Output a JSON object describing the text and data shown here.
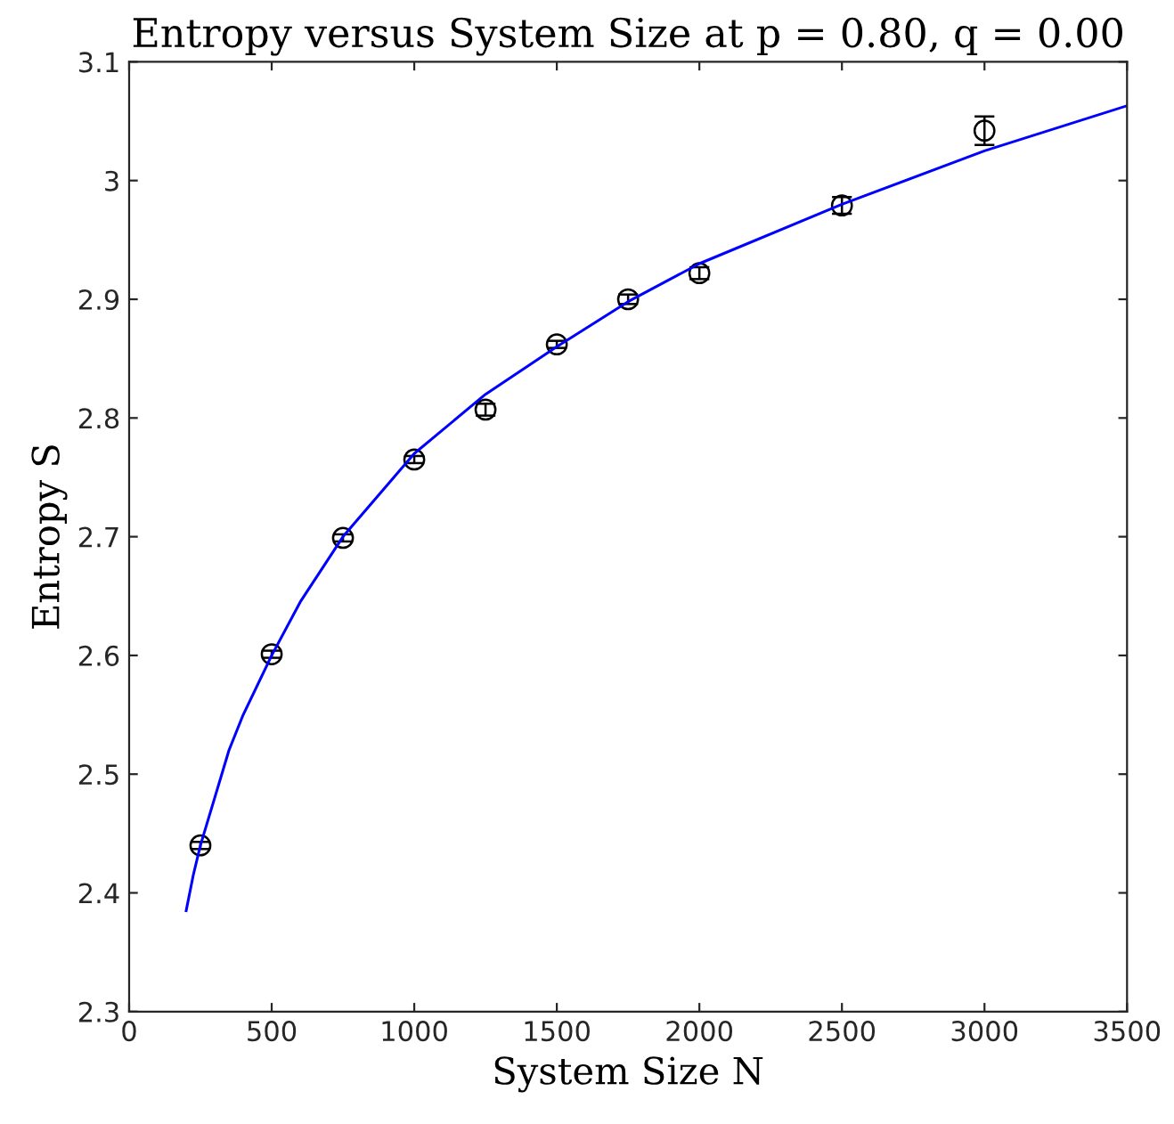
{
  "chart_data": {
    "type": "scatter",
    "title": "Entropy versus System Size at p = 0.80, q = 0.00",
    "xlabel": "System Size N",
    "ylabel": "Entropy S",
    "xlim": [
      0,
      3500
    ],
    "xticks": [
      0,
      500,
      1000,
      1500,
      2000,
      2500,
      3000,
      3500
    ],
    "ylim": [
      2.3,
      3.1
    ],
    "yticks": [
      2.3,
      2.4,
      2.5,
      2.6,
      2.7,
      2.8,
      2.9,
      3,
      3.1
    ],
    "grid": false,
    "legend": false,
    "series": [
      {
        "color": "#000000",
        "marker": "circle",
        "x": [
          250,
          500,
          750,
          1000,
          1250,
          1500,
          1750,
          2000,
          2500,
          3000
        ],
        "values": [
          2.44,
          2.601,
          2.699,
          2.765,
          2.807,
          2.862,
          2.9,
          2.922,
          2.979,
          3.042
        ],
        "errors": [
          0.003,
          0.003,
          0.003,
          0.003,
          0.005,
          0.003,
          0.004,
          0.005,
          0.007,
          0.012
        ]
      },
      {
        "type": "line",
        "color": "#0000ff",
        "marker": "none",
        "line_style": "solid",
        "x": [
          200,
          225,
          250,
          300,
          350,
          400,
          500,
          600,
          750,
          1000,
          1250,
          1500,
          1750,
          2000,
          2500,
          3000,
          3500
        ],
        "values": [
          2.385,
          2.415,
          2.44,
          2.48,
          2.52,
          2.55,
          2.6,
          2.645,
          2.7,
          2.77,
          2.82,
          2.86,
          2.898,
          2.93,
          2.98,
          3.025,
          3.063
        ]
      }
    ]
  }
}
